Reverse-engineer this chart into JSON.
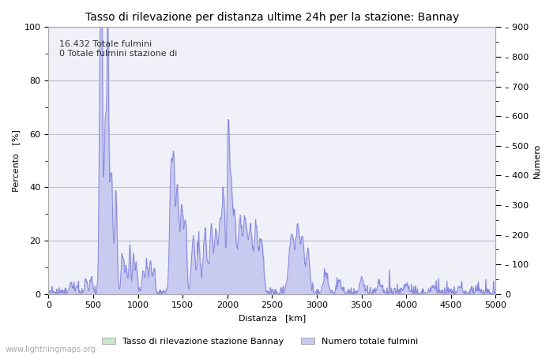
{
  "title": "Tasso di rilevazione per distanza ultime 24h per la stazione: Bannay",
  "xlabel": "Distanza   [km]",
  "ylabel_left": "Percento   [%]",
  "ylabel_right": "Numero",
  "annotation_line1": "16.432 Totale fulmini",
  "annotation_line2": "0 Totale fulmini stazione di",
  "legend_label1": "Tasso di rilevazione stazione Bannay",
  "legend_label2": "Numero totale fulmini",
  "watermark": "www.lightningmaps.org",
  "xlim": [
    0,
    5000
  ],
  "ylim_left": [
    0,
    100
  ],
  "ylim_right": [
    0,
    900
  ],
  "xticks": [
    0,
    500,
    1000,
    1500,
    2000,
    2500,
    3000,
    3500,
    4000,
    4500,
    5000
  ],
  "yticks_left": [
    0,
    20,
    40,
    60,
    80,
    100
  ],
  "yticks_right": [
    0,
    100,
    200,
    300,
    400,
    500,
    600,
    700,
    800,
    900
  ],
  "fill_color_green": "#c8e6c9",
  "fill_color_blue": "#c8caef",
  "line_color": "#8888dd",
  "background_color": "#f0f0f8",
  "grid_color": "#bbbbcc",
  "title_fontsize": 10,
  "label_fontsize": 8,
  "tick_fontsize": 8,
  "legend_fontsize": 8,
  "annot_fontsize": 8
}
